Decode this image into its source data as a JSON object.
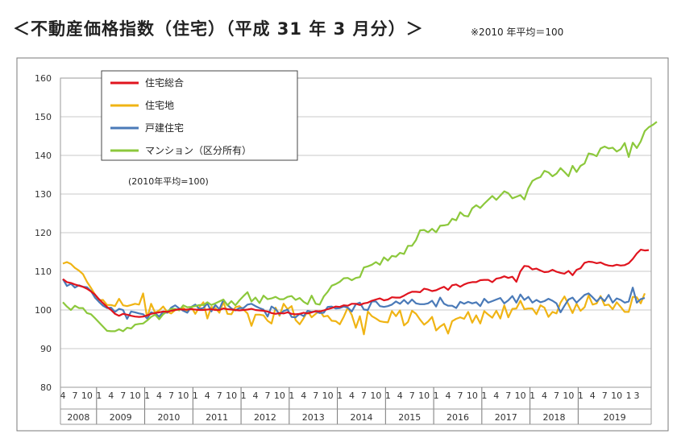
{
  "title": "＜不動産価格指数（住宅）（平成 31 年 3 月分）＞",
  "note": "※2010 年平均＝100",
  "chart_data": {
    "type": "line",
    "inner_note": "(2010年平均=100)",
    "ylim": [
      80,
      160
    ],
    "yticks": [
      "160",
      "150",
      "140",
      "130",
      "120",
      "110",
      "100",
      "90",
      "80"
    ],
    "month_labels": [
      "4",
      "7",
      "10",
      "1",
      "4",
      "7",
      "10",
      "1",
      "4",
      "7",
      "10",
      "1",
      "4",
      "7",
      "10",
      "1",
      "4",
      "7",
      "10",
      "1",
      "4",
      "7",
      "10",
      "1",
      "4",
      "7",
      "10",
      "1",
      "4",
      "7",
      "10",
      "1",
      "4",
      "7",
      "10",
      "1",
      "4",
      "7",
      "10",
      "1",
      "4",
      "7",
      "10",
      "1",
      "4",
      "7",
      "10",
      "1",
      "3"
    ],
    "year_labels": [
      "2008",
      "2009",
      "2010",
      "2011",
      "2012",
      "2013",
      "2014",
      "2015",
      "2016",
      "2017",
      "2018",
      "2019"
    ],
    "x_start": "2008-04",
    "series": [
      {
        "name": "住宅総合",
        "color": "#e0141e",
        "values": [
          108,
          107.2,
          107,
          106.6,
          106.3,
          106,
          105.5,
          104.8,
          104,
          102.8,
          101.8,
          100.8,
          100,
          99,
          98.5,
          99,
          98.8,
          98.5,
          98.3,
          98.2,
          98.3,
          98.6,
          99,
          99.2,
          99.4,
          99.6,
          99.5,
          99.8,
          100,
          100.2,
          100.1,
          100.1,
          100.2,
          100.1,
          100,
          100,
          100.1,
          100.2,
          100,
          100,
          100.4,
          100.2,
          100.1,
          100,
          99.9,
          100,
          100.1,
          100.3,
          100,
          99.9,
          99.8,
          99.6,
          99.2,
          99,
          99.2,
          99.1,
          99.4,
          99,
          98.9,
          99,
          99.3,
          99.1,
          99.4,
          99.7,
          99.6,
          99.9,
          100.2,
          100.5,
          100.9,
          100.8,
          101.2,
          101.1,
          101.6,
          101.6,
          101.3,
          101.7,
          101.9,
          102.4,
          102.7,
          103,
          102.5,
          102.7,
          103.3,
          103.2,
          103.2,
          103.7,
          104.3,
          104.7,
          104.7,
          104.6,
          105.5,
          105.3,
          104.9,
          105.1,
          105.6,
          106,
          105.2,
          106.4,
          106.6,
          106,
          106.6,
          107,
          107.2,
          107.2,
          107.7,
          107.8,
          107.8,
          107.2,
          108.1,
          108.3,
          108.7,
          108.3,
          108.6,
          107.3,
          110,
          111.4,
          111.3,
          110.5,
          110.7,
          110.2,
          109.8,
          109.9,
          110.4,
          109.9,
          109.6,
          109.4,
          110.1,
          109,
          110.4,
          110.8,
          112.2,
          112.5,
          112.4,
          112.1,
          112.3,
          111.8,
          111.5,
          111.4,
          111.7,
          111.5,
          111.6,
          112.1,
          113.2,
          114.6,
          115.6,
          115.4,
          115.5
        ]
      },
      {
        "name": "住宅地",
        "color": "#f0b414",
        "values": [
          112,
          112.4,
          111.9,
          110.9,
          110.2,
          109.3,
          107.3,
          105.7,
          104,
          102.5,
          102.6,
          101.3,
          101.3,
          101,
          102.9,
          101.2,
          101,
          101.3,
          101.6,
          101.4,
          104.3,
          97.9,
          101.6,
          99.3,
          99.9,
          100.9,
          99.5,
          99.1,
          100,
          100.1,
          100.6,
          99.6,
          100.8,
          99,
          100.7,
          102,
          97.8,
          100.8,
          100.5,
          99.3,
          102.1,
          99,
          98.9,
          100.7,
          101,
          100.1,
          99.1,
          95.9,
          98.8,
          98.8,
          98.6,
          97.2,
          96.5,
          100.6,
          98.5,
          101.6,
          100.2,
          101,
          97.4,
          96.3,
          97.9,
          99.7,
          98.1,
          99,
          99.8,
          98.3,
          98.5,
          97.2,
          97.1,
          96.3,
          98.3,
          100.6,
          98.7,
          95.4,
          98.4,
          93.7,
          99.6,
          98.4,
          97.8,
          97.1,
          96.9,
          96.8,
          99.7,
          98.4,
          99.9,
          96,
          96.9,
          99.8,
          99,
          97.5,
          96.2,
          97,
          98.2,
          94.7,
          95.7,
          96.4,
          93.9,
          97.1,
          97.7,
          98.1,
          97.7,
          99.5,
          96.7,
          98.6,
          96.5,
          99.7,
          98.8,
          98,
          99.8,
          97.8,
          101.2,
          98.1,
          100.3,
          100.4,
          102.4,
          100.2,
          100.4,
          100.4,
          98.9,
          101.2,
          100.6,
          98.2,
          99.5,
          99.1,
          101.9,
          103.5,
          101.4,
          99.2,
          101.6,
          99.8,
          100.7,
          103.8,
          101.4,
          101.7,
          103.6,
          101.2,
          101.4,
          100.2,
          102,
          100.8,
          99.5,
          99.5,
          103.4,
          103.3,
          101.7,
          104.3
        ]
      },
      {
        "name": "戸建住宅",
        "color": "#4a7ab8",
        "values": [
          108,
          106.2,
          106.8,
          105.8,
          106.4,
          106,
          105.9,
          104.9,
          103.2,
          102.1,
          101.1,
          100.5,
          100.6,
          99.5,
          100.3,
          100,
          97.7,
          99.6,
          99.4,
          99.1,
          98.9,
          97.8,
          99.4,
          99.1,
          98.3,
          99.5,
          99.3,
          100.6,
          101.2,
          100.4,
          99.8,
          99.3,
          100.8,
          101.4,
          100.3,
          100.5,
          101.7,
          99.6,
          101.3,
          100.2,
          102.6,
          101.3,
          100.4,
          99.9,
          100.5,
          100.5,
          101.4,
          101.6,
          101,
          100.5,
          100.1,
          98.3,
          100.9,
          100.2,
          98.9,
          99.7,
          100.1,
          98.2,
          98.1,
          99,
          98.4,
          99.8,
          99.5,
          99.6,
          99.2,
          99.3,
          100.8,
          100.9,
          100.4,
          100.5,
          100.9,
          100.6,
          99.6,
          101.5,
          101.9,
          100.1,
          100,
          102.2,
          102.2,
          101,
          100.8,
          101,
          101.4,
          102.2,
          101.6,
          102.6,
          101.6,
          102.7,
          101.7,
          101.5,
          101.5,
          101.7,
          102.4,
          100.9,
          103.2,
          101.6,
          101.1,
          101.1,
          100.5,
          102.1,
          101.6,
          102.1,
          101.7,
          102,
          101,
          102.9,
          101.9,
          102.3,
          102.7,
          103.1,
          101.7,
          102.5,
          103.6,
          101.9,
          104,
          102.6,
          103.4,
          101.9,
          102.6,
          102,
          102.3,
          102.9,
          102.4,
          101.7,
          99.4,
          101.1,
          102.7,
          103.2,
          101.9,
          102.9,
          103.9,
          104.3,
          103.3,
          102.2,
          103.3,
          102.3,
          103.9,
          101.9,
          103,
          102.6,
          101.9,
          102.2,
          105.8,
          101.9,
          102.8,
          103.1
        ]
      },
      {
        "name": "マンション（区分所有）",
        "color": "#8cc83c",
        "values": [
          102,
          100.9,
          100,
          101.1,
          100.5,
          100.5,
          99.2,
          98.9,
          97.9,
          96.8,
          95.7,
          94.6,
          94.5,
          94.5,
          95,
          94.5,
          95.4,
          95.2,
          96.2,
          96.4,
          96.5,
          97.3,
          98.2,
          98.8,
          97.6,
          98.9,
          99.6,
          100.3,
          100.3,
          99.9,
          101.2,
          100.7,
          100.8,
          101,
          101.3,
          101.3,
          102,
          101.3,
          101.7,
          102.2,
          102.7,
          101.2,
          102.3,
          101.2,
          102.5,
          103.6,
          104.6,
          102.2,
          103.2,
          101.8,
          103.7,
          102.8,
          103,
          103.4,
          102.8,
          102.8,
          103.4,
          103.6,
          102.6,
          103.1,
          102.1,
          101.5,
          103.7,
          101.6,
          101.4,
          103.5,
          104.7,
          106.3,
          106.7,
          107.3,
          108.2,
          108.3,
          107.7,
          108.3,
          108.5,
          111,
          111.3,
          111.7,
          112.4,
          111.7,
          113.6,
          112.8,
          114,
          113.8,
          114.8,
          114.5,
          116.6,
          116.6,
          118.1,
          120.6,
          120.7,
          120.1,
          121,
          120.1,
          121.8,
          121.9,
          122.1,
          123.6,
          123.2,
          125.3,
          124.4,
          124.2,
          126.3,
          127.1,
          126.4,
          127.5,
          128.5,
          129.5,
          128.5,
          129.6,
          130.7,
          130.2,
          128.9,
          129.3,
          129.7,
          128.6,
          131.5,
          133.4,
          134,
          134.4,
          136,
          135.6,
          134.6,
          135.3,
          136.7,
          135.7,
          134.6,
          137.3,
          135.7,
          137.3,
          137.9,
          140.5,
          140.3,
          139.8,
          141.8,
          142.3,
          141.8,
          142,
          141,
          141.6,
          143.2,
          139.6,
          143.3,
          141.9,
          143.6,
          146.3,
          147.3,
          147.9,
          148.7
        ]
      }
    ]
  }
}
